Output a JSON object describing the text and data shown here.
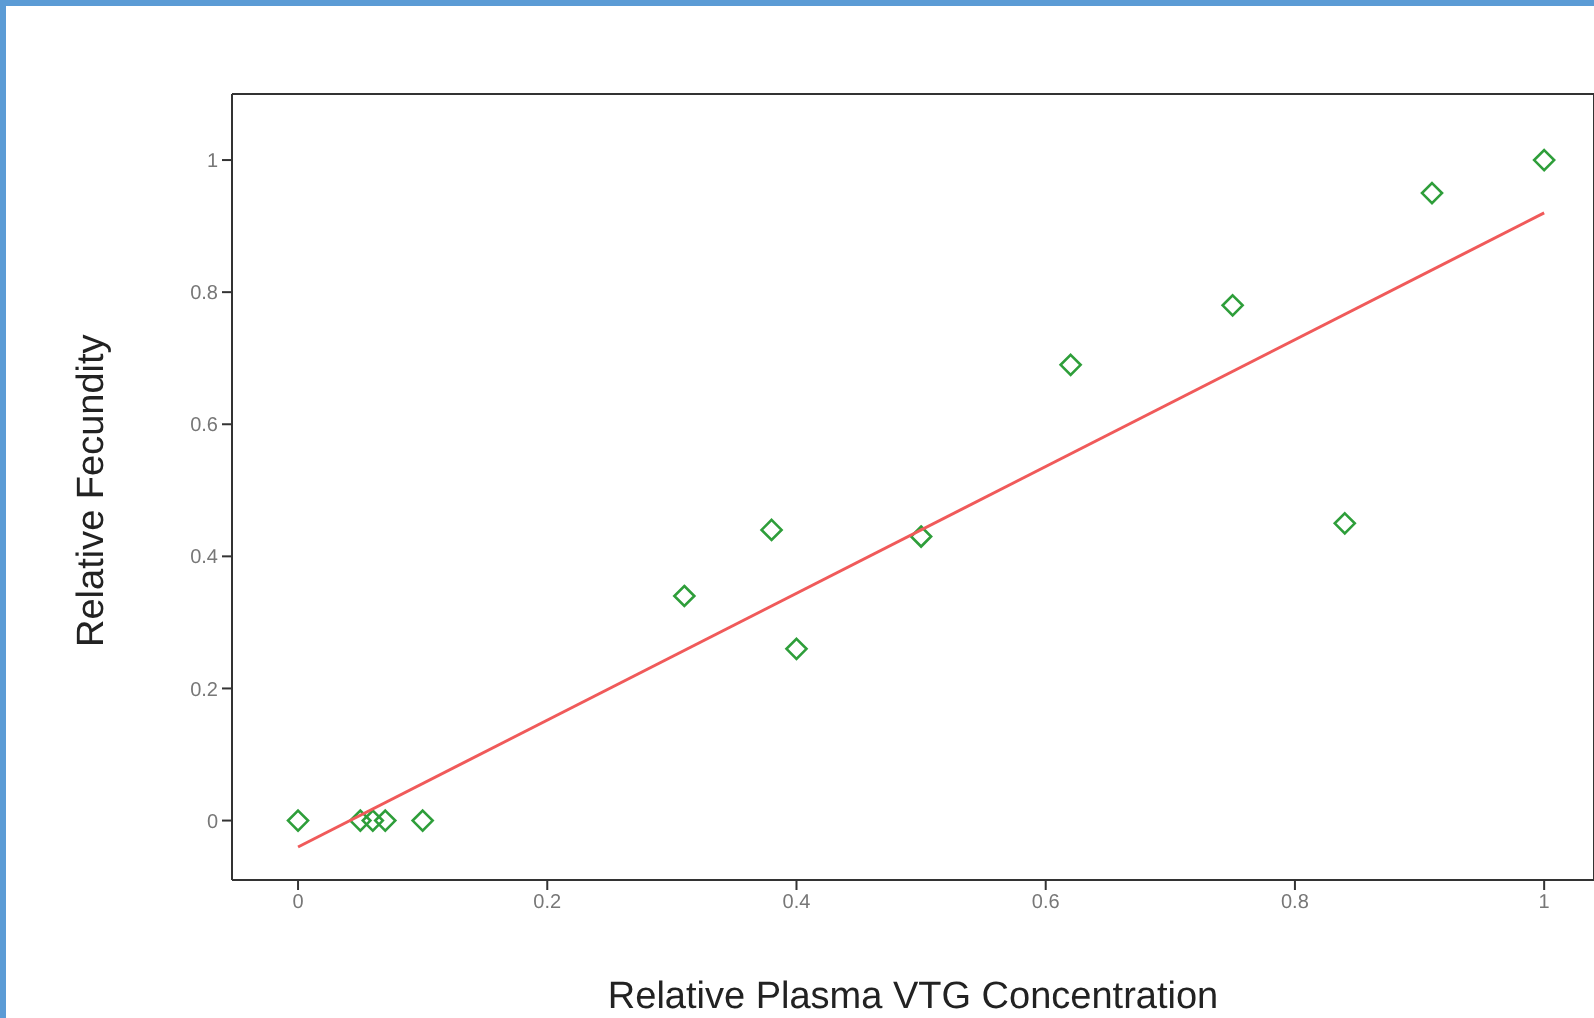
{
  "chart_data": {
    "type": "scatter",
    "xlabel": "Relative Plasma VTG Concentration",
    "ylabel": "Relative Fecundity",
    "xlim": [
      -0.053,
      1.04
    ],
    "ylim": [
      -0.09,
      1.1
    ],
    "xticks": [
      0,
      0.2,
      0.4,
      0.6,
      0.8,
      1
    ],
    "yticks": [
      0,
      0.2,
      0.4,
      0.6,
      0.8,
      1
    ],
    "marker": "diamond",
    "series": [
      {
        "color": "#2e9e3a",
        "x": [
          0,
          0.05,
          0.06,
          0.07,
          0.1,
          0.31,
          0.38,
          0.4,
          0.5,
          0.62,
          0.75,
          0.84,
          0.91,
          1
        ],
        "values": [
          0,
          0,
          0,
          0,
          0,
          0.34,
          0.44,
          0.26,
          0.43,
          0.69,
          0.78,
          0.45,
          0.95,
          1
        ]
      },
      {
        "type": "line",
        "color": "#f05a5a",
        "line_style": "solid",
        "marker": "none",
        "x": [
          0,
          1
        ],
        "values": [
          -0.04,
          0.92
        ]
      }
    ]
  }
}
